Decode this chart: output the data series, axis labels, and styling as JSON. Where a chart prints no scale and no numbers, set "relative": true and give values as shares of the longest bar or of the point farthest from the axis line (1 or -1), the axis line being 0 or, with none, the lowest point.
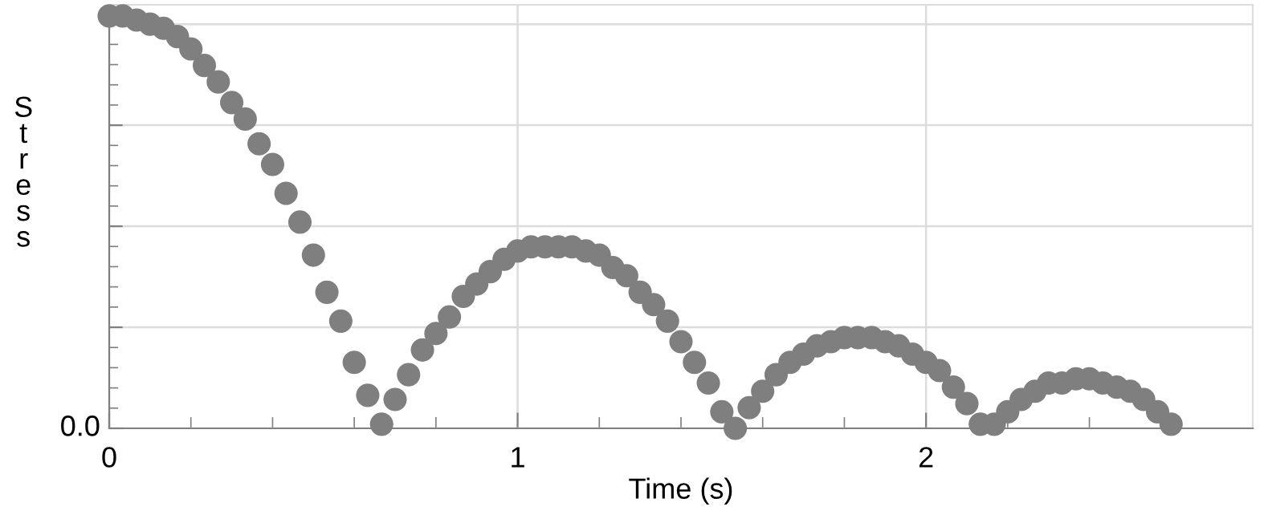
{
  "chart_data": {
    "type": "scatter",
    "xlabel": "Time (s)",
    "ylabel": "Stress",
    "relative": true,
    "x": [
      0,
      0.033,
      0.067,
      0.1,
      0.133,
      0.167,
      0.2,
      0.233,
      0.267,
      0.3,
      0.333,
      0.367,
      0.4,
      0.433,
      0.467,
      0.5,
      0.533,
      0.567,
      0.6,
      0.633,
      0.667,
      0.7,
      0.733,
      0.767,
      0.8,
      0.833,
      0.867,
      0.9,
      0.933,
      0.967,
      1.0,
      1.033,
      1.067,
      1.1,
      1.133,
      1.167,
      1.2,
      1.233,
      1.267,
      1.3,
      1.333,
      1.367,
      1.4,
      1.433,
      1.467,
      1.5,
      1.533,
      1.567,
      1.6,
      1.633,
      1.667,
      1.7,
      1.733,
      1.767,
      1.8,
      1.833,
      1.867,
      1.9,
      1.933,
      1.967,
      2.0,
      2.033,
      2.067,
      2.1,
      2.133,
      2.167,
      2.2,
      2.233,
      2.267,
      2.3,
      2.333,
      2.367,
      2.4,
      2.433,
      2.467,
      2.5,
      2.533,
      2.567,
      2.6
    ],
    "series": [
      {
        "color": "#7f7f7f",
        "values": [
          1.0,
          1.0,
          0.99,
          0.98,
          0.97,
          0.95,
          0.92,
          0.88,
          0.84,
          0.79,
          0.75,
          0.69,
          0.64,
          0.57,
          0.5,
          0.42,
          0.33,
          0.26,
          0.16,
          0.08,
          0.01,
          0.07,
          0.13,
          0.19,
          0.23,
          0.27,
          0.32,
          0.35,
          0.38,
          0.41,
          0.43,
          0.44,
          0.44,
          0.44,
          0.44,
          0.43,
          0.42,
          0.39,
          0.37,
          0.33,
          0.3,
          0.26,
          0.21,
          0.16,
          0.11,
          0.04,
          0.0,
          0.05,
          0.09,
          0.13,
          0.16,
          0.18,
          0.2,
          0.21,
          0.22,
          0.22,
          0.22,
          0.21,
          0.2,
          0.18,
          0.16,
          0.14,
          0.1,
          0.06,
          0.01,
          0.01,
          0.04,
          0.07,
          0.09,
          0.11,
          0.11,
          0.12,
          0.12,
          0.11,
          0.1,
          0.09,
          0.07,
          0.04,
          0.01
        ]
      }
    ],
    "xlim": [
      0,
      2.8
    ],
    "xticks": [
      0,
      1,
      2
    ],
    "annotations": [
      "0.0"
    ],
    "grid": true,
    "marker": "circle"
  }
}
